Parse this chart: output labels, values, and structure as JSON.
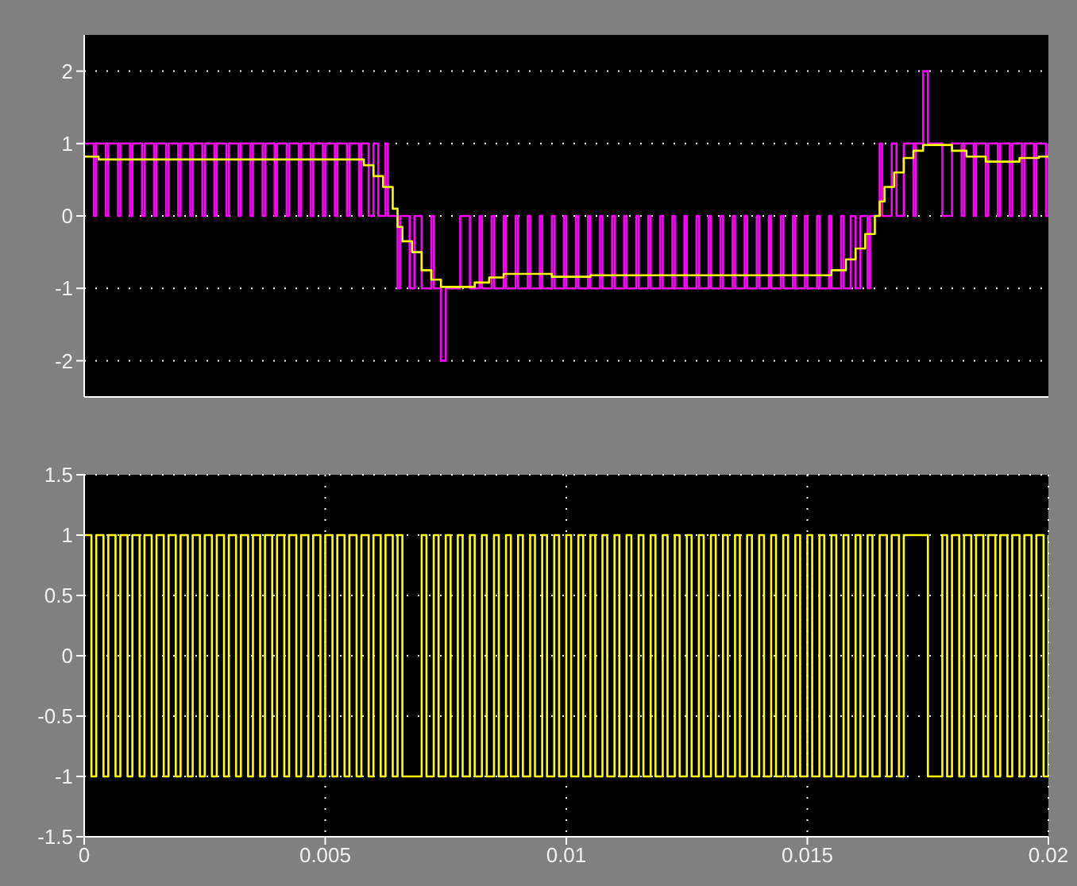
{
  "chart_data": [
    {
      "type": "step",
      "xlim": [
        0,
        0.02
      ],
      "xticks": [
        0,
        0.005,
        0.01,
        0.015,
        0.02
      ],
      "ylim": [
        -2.5,
        2.5
      ],
      "yticks": [
        -2,
        -1,
        0,
        1,
        2
      ],
      "grid": true,
      "tick_labels": "y",
      "series": [
        {
          "type": "step",
          "color": "#ff00ff",
          "x": [
            0,
            0.0002,
            0.00025,
            0.00045,
            0.0005,
            0.0007,
            0.00075,
            0.00095,
            0.001,
            0.0012,
            0.00125,
            0.00145,
            0.0015,
            0.0017,
            0.00175,
            0.00195,
            0.002,
            0.0022,
            0.00225,
            0.00245,
            0.0025,
            0.0027,
            0.00275,
            0.00295,
            0.003,
            0.0032,
            0.00325,
            0.00345,
            0.0035,
            0.0037,
            0.00375,
            0.00395,
            0.004,
            0.0042,
            0.00425,
            0.00445,
            0.0045,
            0.0047,
            0.00475,
            0.00495,
            0.005,
            0.0052,
            0.00525,
            0.00545,
            0.0055,
            0.0057,
            0.00575,
            0.0059,
            0.006,
            0.0061,
            0.00625,
            0.0063,
            0.0065,
            0.00655,
            0.00675,
            0.00685,
            0.007,
            0.0072,
            0.00725,
            0.0074,
            0.0075,
            0.0078,
            0.008,
            0.0082,
            0.00825,
            0.00845,
            0.0085,
            0.0087,
            0.00875,
            0.00895,
            0.009,
            0.0092,
            0.00925,
            0.00945,
            0.0095,
            0.0097,
            0.00975,
            0.00995,
            0.01,
            0.0102,
            0.01025,
            0.01045,
            0.0105,
            0.0107,
            0.01075,
            0.01095,
            0.011,
            0.0112,
            0.01125,
            0.01145,
            0.0115,
            0.0117,
            0.01175,
            0.01195,
            0.012,
            0.0122,
            0.01225,
            0.01245,
            0.0125,
            0.0127,
            0.01275,
            0.01295,
            0.013,
            0.0132,
            0.01325,
            0.01345,
            0.0135,
            0.0137,
            0.01375,
            0.01395,
            0.014,
            0.0142,
            0.01425,
            0.01445,
            0.0145,
            0.0147,
            0.01475,
            0.01495,
            0.015,
            0.0152,
            0.01525,
            0.01545,
            0.0155,
            0.0157,
            0.01575,
            0.0159,
            0.016,
            0.0161,
            0.01625,
            0.0163,
            0.0165,
            0.01655,
            0.01675,
            0.01685,
            0.017,
            0.0172,
            0.01725,
            0.0174,
            0.0175,
            0.0178,
            0.018,
            0.0182,
            0.01825,
            0.01845,
            0.0185,
            0.0187,
            0.01875,
            0.01895,
            0.019,
            0.0192,
            0.01925,
            0.01945,
            0.0195,
            0.0197,
            0.01975,
            0.01995,
            0.02
          ],
          "values": [
            1,
            0,
            1,
            0,
            1,
            0,
            1,
            0,
            1,
            0,
            1,
            0,
            1,
            0,
            1,
            0,
            1,
            0,
            1,
            0,
            1,
            0,
            1,
            0,
            1,
            0,
            1,
            0,
            1,
            0,
            1,
            0,
            1,
            0,
            1,
            0,
            1,
            0,
            1,
            0,
            1,
            0,
            1,
            0,
            1,
            0,
            1,
            0,
            1,
            0,
            1,
            0,
            -1,
            0,
            -1,
            0,
            -1,
            0,
            -1,
            -2,
            -1,
            0,
            -1,
            0,
            -1,
            0,
            -1,
            0,
            -1,
            0,
            -1,
            0,
            -1,
            0,
            -1,
            0,
            -1,
            0,
            -1,
            0,
            -1,
            0,
            -1,
            0,
            -1,
            0,
            -1,
            0,
            -1,
            0,
            -1,
            0,
            -1,
            0,
            -1,
            0,
            -1,
            0,
            -1,
            0,
            -1,
            0,
            -1,
            0,
            -1,
            0,
            -1,
            0,
            -1,
            0,
            -1,
            0,
            -1,
            0,
            -1,
            0,
            -1,
            0,
            -1,
            0,
            -1,
            0,
            -1,
            0,
            -1,
            0,
            -1,
            0,
            -1,
            0,
            1,
            0,
            1,
            0,
            1,
            0,
            1,
            2,
            1,
            0,
            1,
            0,
            1,
            0,
            1,
            0,
            1,
            0,
            1,
            0,
            1,
            0,
            1,
            0,
            1,
            0,
            1
          ]
        },
        {
          "type": "step",
          "color": "#ffff00",
          "x": [
            0,
            0.0003,
            0.0055,
            0.0058,
            0.006,
            0.0062,
            0.0064,
            0.0065,
            0.0066,
            0.0068,
            0.007,
            0.0072,
            0.0074,
            0.0078,
            0.0081,
            0.0084,
            0.0087,
            0.0093,
            0.0097,
            0.0103,
            0.0105,
            0.0152,
            0.0155,
            0.0158,
            0.016,
            0.0162,
            0.0164,
            0.0165,
            0.0166,
            0.0168,
            0.017,
            0.0172,
            0.0174,
            0.0177,
            0.018,
            0.0183,
            0.0187,
            0.019,
            0.0194,
            0.0198,
            0.02
          ],
          "values": [
            0.82,
            0.78,
            0.78,
            0.7,
            0.55,
            0.4,
            0.1,
            -0.15,
            -0.35,
            -0.5,
            -0.75,
            -0.88,
            -0.98,
            -0.98,
            -0.92,
            -0.85,
            -0.8,
            -0.8,
            -0.84,
            -0.84,
            -0.82,
            -0.82,
            -0.75,
            -0.6,
            -0.45,
            -0.25,
            0,
            0.2,
            0.4,
            0.6,
            0.8,
            0.9,
            0.98,
            0.98,
            0.9,
            0.82,
            0.75,
            0.75,
            0.8,
            0.82,
            0.82
          ]
        }
      ]
    },
    {
      "type": "step",
      "xlim": [
        0,
        0.02
      ],
      "xticks": [
        0,
        0.005,
        0.01,
        0.015,
        0.02
      ],
      "ylim": [
        -1.5,
        1.5
      ],
      "yticks": [
        -1.5,
        -1,
        -0.5,
        0,
        0.5,
        1,
        1.5
      ],
      "grid": true,
      "series": [
        {
          "type": "step",
          "color": "#ffff00",
          "x": [
            0,
            0.00015,
            0.00025,
            0.0004,
            0.0005,
            0.00065,
            0.00075,
            0.0009,
            0.001,
            0.00115,
            0.00125,
            0.0014,
            0.0015,
            0.00165,
            0.00175,
            0.0019,
            0.002,
            0.00215,
            0.00225,
            0.0024,
            0.0025,
            0.00265,
            0.00275,
            0.0029,
            0.003,
            0.00315,
            0.00325,
            0.0034,
            0.0035,
            0.00365,
            0.00375,
            0.0039,
            0.004,
            0.00415,
            0.00425,
            0.0044,
            0.0045,
            0.00465,
            0.00475,
            0.0049,
            0.005,
            0.00515,
            0.00525,
            0.0054,
            0.0055,
            0.00565,
            0.00575,
            0.0059,
            0.006,
            0.00615,
            0.00625,
            0.0064,
            0.0065,
            0.0066,
            0.007,
            0.0071,
            0.00725,
            0.00735,
            0.0075,
            0.0076,
            0.00775,
            0.00785,
            0.008,
            0.0081,
            0.00825,
            0.00835,
            0.0085,
            0.0086,
            0.00875,
            0.00885,
            0.009,
            0.0091,
            0.00925,
            0.00935,
            0.0095,
            0.0096,
            0.00975,
            0.00985,
            0.01,
            0.0101,
            0.01025,
            0.01035,
            0.0105,
            0.0106,
            0.01075,
            0.01085,
            0.011,
            0.0111,
            0.01125,
            0.01135,
            0.0115,
            0.0116,
            0.01175,
            0.01185,
            0.012,
            0.0121,
            0.01225,
            0.01235,
            0.0125,
            0.0126,
            0.01275,
            0.01285,
            0.013,
            0.0131,
            0.01325,
            0.01335,
            0.0135,
            0.0136,
            0.01375,
            0.01385,
            0.014,
            0.0141,
            0.01425,
            0.01435,
            0.0145,
            0.0146,
            0.01475,
            0.01485,
            0.015,
            0.0151,
            0.01525,
            0.01535,
            0.0155,
            0.0156,
            0.01575,
            0.01585,
            0.016,
            0.0161,
            0.01625,
            0.01635,
            0.0165,
            0.01665,
            0.01675,
            0.0169,
            0.017,
            0.0175,
            0.0178,
            0.0179,
            0.018,
            0.01815,
            0.01825,
            0.0184,
            0.0185,
            0.01865,
            0.01875,
            0.0189,
            0.019,
            0.01915,
            0.01925,
            0.0194,
            0.0195,
            0.01965,
            0.01975,
            0.0199,
            0.02
          ],
          "values": [
            1,
            -1,
            1,
            -1,
            1,
            -1,
            1,
            -1,
            1,
            -1,
            1,
            -1,
            1,
            -1,
            1,
            -1,
            1,
            -1,
            1,
            -1,
            1,
            -1,
            1,
            -1,
            1,
            -1,
            1,
            -1,
            1,
            -1,
            1,
            -1,
            1,
            -1,
            1,
            -1,
            1,
            -1,
            1,
            -1,
            1,
            -1,
            1,
            -1,
            1,
            -1,
            1,
            -1,
            1,
            -1,
            1,
            -1,
            1,
            -1,
            1,
            -1,
            1,
            -1,
            1,
            -1,
            1,
            -1,
            1,
            -1,
            1,
            -1,
            1,
            -1,
            1,
            -1,
            1,
            -1,
            1,
            -1,
            1,
            -1,
            1,
            -1,
            1,
            -1,
            1,
            -1,
            1,
            -1,
            1,
            -1,
            1,
            -1,
            1,
            -1,
            1,
            -1,
            1,
            -1,
            1,
            -1,
            1,
            -1,
            1,
            -1,
            1,
            -1,
            1,
            -1,
            1,
            -1,
            1,
            -1,
            1,
            -1,
            1,
            -1,
            1,
            -1,
            1,
            -1,
            1,
            -1,
            1,
            -1,
            1,
            -1,
            1,
            -1,
            1,
            -1,
            1,
            -1,
            1,
            -1,
            1,
            -1,
            1,
            -1,
            1,
            -1,
            1,
            -1,
            1,
            -1,
            1,
            -1,
            1,
            -1,
            1,
            -1,
            1,
            -1,
            1,
            -1,
            1,
            -1,
            1,
            -1,
            1
          ]
        }
      ]
    }
  ]
}
